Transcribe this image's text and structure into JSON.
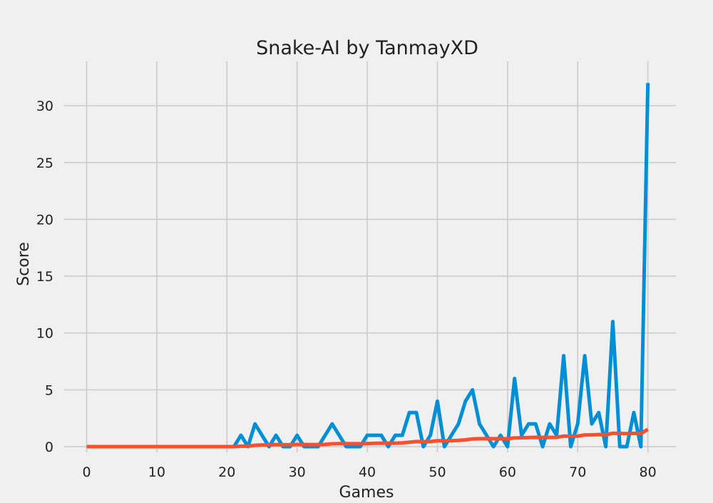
{
  "chart_data": {
    "type": "line",
    "title": "Snake-AI by TanmayXD",
    "xlabel": "Games",
    "ylabel": "Score",
    "xlim": [
      -3.2,
      84
    ],
    "ylim": [
      -0.5,
      33.9
    ],
    "xticks": [
      0,
      10,
      20,
      30,
      40,
      50,
      60,
      70,
      80
    ],
    "yticks": [
      0,
      5,
      10,
      15,
      20,
      25,
      30
    ],
    "grid": true,
    "legend": false,
    "x": [
      0,
      1,
      2,
      3,
      4,
      5,
      6,
      7,
      8,
      9,
      10,
      11,
      12,
      13,
      14,
      15,
      16,
      17,
      18,
      19,
      20,
      21,
      22,
      23,
      24,
      25,
      26,
      27,
      28,
      29,
      30,
      31,
      32,
      33,
      34,
      35,
      36,
      37,
      38,
      39,
      40,
      41,
      42,
      43,
      44,
      45,
      46,
      47,
      48,
      49,
      50,
      51,
      52,
      53,
      54,
      55,
      56,
      57,
      58,
      59,
      60,
      61,
      62,
      63,
      64,
      65,
      66,
      67,
      68,
      69,
      70,
      71,
      72,
      73,
      74,
      75,
      76,
      77,
      78,
      79,
      80
    ],
    "series": [
      {
        "color": "#008fd5",
        "values": [
          0,
          0,
          0,
          0,
          0,
          0,
          0,
          0,
          0,
          0,
          0,
          0,
          0,
          0,
          0,
          0,
          0,
          0,
          0,
          0,
          0,
          0,
          1,
          0,
          2,
          1,
          0,
          1,
          0,
          0,
          1,
          0,
          0,
          0,
          1,
          2,
          1,
          0,
          0,
          0,
          1,
          1,
          1,
          0,
          1,
          1,
          3,
          3,
          0,
          1,
          4,
          0,
          1,
          2,
          4,
          5,
          2,
          1,
          0,
          1,
          0,
          6,
          1,
          2,
          2,
          0,
          2,
          1,
          8,
          0,
          2,
          8,
          2,
          3,
          0,
          11,
          0,
          0,
          3,
          0,
          32
        ]
      },
      {
        "color": "#fc4f30",
        "values": [
          0,
          0,
          0,
          0,
          0,
          0,
          0,
          0,
          0,
          0,
          0,
          0,
          0,
          0,
          0,
          0,
          0,
          0,
          0,
          0,
          0,
          0,
          0.04,
          0.04,
          0.12,
          0.15,
          0.15,
          0.18,
          0.17,
          0.17,
          0.19,
          0.19,
          0.18,
          0.18,
          0.2,
          0.25,
          0.27,
          0.27,
          0.26,
          0.26,
          0.27,
          0.29,
          0.31,
          0.3,
          0.31,
          0.33,
          0.39,
          0.45,
          0.44,
          0.45,
          0.52,
          0.51,
          0.52,
          0.55,
          0.6,
          0.68,
          0.7,
          0.71,
          0.7,
          0.7,
          0.69,
          0.77,
          0.78,
          0.8,
          0.82,
          0.81,
          0.82,
          0.82,
          0.93,
          0.91,
          0.93,
          1.03,
          1.04,
          1.06,
          1.04,
          1.18,
          1.16,
          1.15,
          1.17,
          1.15,
          1.53
        ]
      }
    ]
  }
}
